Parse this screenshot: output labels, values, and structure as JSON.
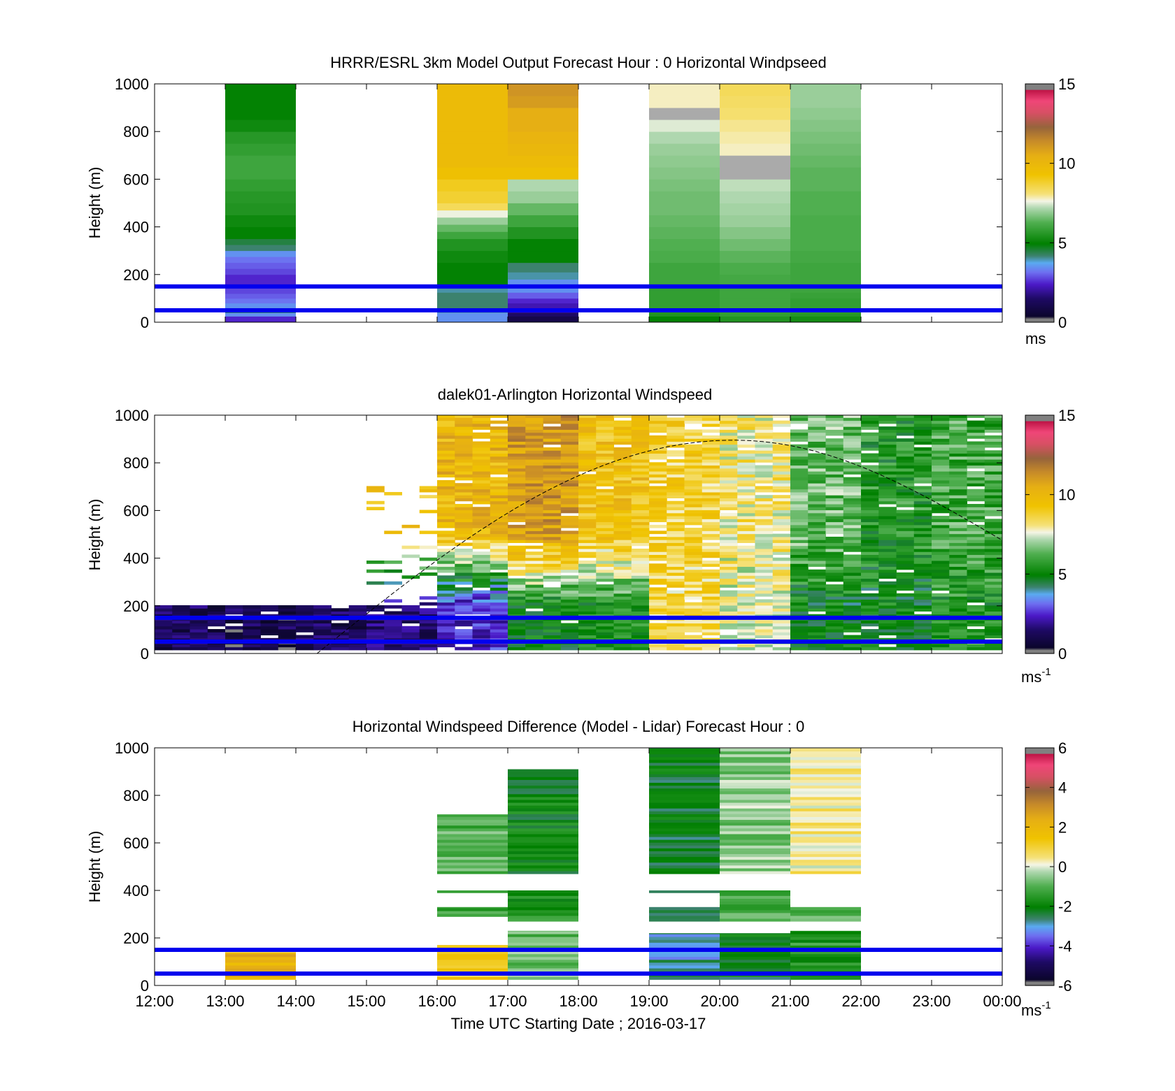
{
  "figure": {
    "xlabel": "Time UTC  Starting Date ; 2016-03-17",
    "ylabel": "Height (m)",
    "time_ticks": [
      "12:00",
      "13:00",
      "14:00",
      "15:00",
      "16:00",
      "17:00",
      "18:00",
      "19:00",
      "20:00",
      "21:00",
      "22:00",
      "23:00",
      "00:00"
    ],
    "height_ticks": [
      "0",
      "200",
      "400",
      "600",
      "800",
      "1000"
    ],
    "reference_line_color": "#0000ee"
  },
  "chart_data": [
    {
      "type": "heatmap",
      "title": "HRRR/ESRL 3km Model Output   Forecast Hour : 0 Horizontal Windpseed",
      "ylabel": "Height (m)",
      "xlim_hours": [
        12,
        24
      ],
      "ylim": [
        0,
        1000
      ],
      "colorbar": {
        "range": [
          0,
          15
        ],
        "ticks": [
          "0",
          "5",
          "10",
          "15"
        ],
        "label": "ms",
        "superscript": ""
      },
      "reference_lines_m": [
        50,
        150
      ],
      "columns": [
        {
          "start_hour": 13,
          "profile": [
            [
              25,
              2.5
            ],
            [
              40,
              3.5
            ],
            [
              60,
              4.5
            ],
            [
              80,
              3.5
            ],
            [
              100,
              3.2
            ],
            [
              120,
              3.0
            ],
            [
              150,
              2.8
            ],
            [
              175,
              2.5
            ],
            [
              200,
              2.5
            ],
            [
              225,
              2.8
            ],
            [
              250,
              3.0
            ],
            [
              275,
              3.2
            ],
            [
              300,
              3.5
            ],
            [
              325,
              4.2
            ],
            [
              350,
              4.5
            ],
            [
              400,
              5.0
            ],
            [
              450,
              5.2
            ],
            [
              500,
              5.5
            ],
            [
              550,
              5.6
            ],
            [
              600,
              5.8
            ],
            [
              650,
              6.0
            ],
            [
              700,
              6.0
            ],
            [
              750,
              5.8
            ],
            [
              800,
              5.6
            ],
            [
              850,
              5.2
            ],
            [
              900,
              5.0
            ],
            [
              1000,
              5.0
            ]
          ]
        },
        {
          "start_hour": 16,
          "profile": [
            [
              25,
              3.5
            ],
            [
              40,
              3.5
            ],
            [
              60,
              4.0
            ],
            [
              80,
              4.2
            ],
            [
              100,
              4.2
            ],
            [
              125,
              4.2
            ],
            [
              150,
              4.0
            ],
            [
              200,
              5.0
            ],
            [
              250,
              5.0
            ],
            [
              300,
              5.2
            ],
            [
              350,
              5.5
            ],
            [
              380,
              6.0
            ],
            [
              410,
              6.5
            ],
            [
              440,
              7.0
            ],
            [
              470,
              7.6
            ],
            [
              500,
              8.4
            ],
            [
              550,
              8.8
            ],
            [
              600,
              9.0
            ],
            [
              650,
              9.5
            ],
            [
              700,
              9.8
            ],
            [
              750,
              9.8
            ],
            [
              800,
              9.8
            ],
            [
              850,
              9.8
            ],
            [
              900,
              9.8
            ],
            [
              950,
              9.8
            ],
            [
              1000,
              9.8
            ]
          ]
        },
        {
          "start_hour": 17,
          "profile": [
            [
              25,
              1.0
            ],
            [
              40,
              1.5
            ],
            [
              60,
              2.0
            ],
            [
              80,
              2.2
            ],
            [
              100,
              2.5
            ],
            [
              125,
              3.0
            ],
            [
              150,
              3.5
            ],
            [
              180,
              3.5
            ],
            [
              210,
              4.0
            ],
            [
              250,
              4.2
            ],
            [
              300,
              5.0
            ],
            [
              350,
              5.0
            ],
            [
              400,
              5.5
            ],
            [
              450,
              6.0
            ],
            [
              500,
              6.5
            ],
            [
              550,
              7.0
            ],
            [
              600,
              7.2
            ],
            [
              650,
              9.5
            ],
            [
              700,
              9.8
            ],
            [
              750,
              10.0
            ],
            [
              800,
              10.2
            ],
            [
              850,
              10.5
            ],
            [
              900,
              10.5
            ],
            [
              950,
              11.0
            ],
            [
              1000,
              11.2
            ]
          ]
        },
        {
          "start_hour": 19,
          "profile": [
            [
              25,
              5.0
            ],
            [
              40,
              5.5
            ],
            [
              60,
              5.6
            ],
            [
              80,
              5.8
            ],
            [
              100,
              5.8
            ],
            [
              125,
              5.8
            ],
            [
              150,
              5.8
            ],
            [
              200,
              6.0
            ],
            [
              250,
              6.0
            ],
            [
              300,
              6.2
            ],
            [
              350,
              6.3
            ],
            [
              400,
              6.4
            ],
            [
              450,
              6.5
            ],
            [
              500,
              6.6
            ],
            [
              550,
              6.6
            ],
            [
              600,
              6.7
            ],
            [
              650,
              6.8
            ],
            [
              700,
              6.9
            ],
            [
              750,
              7.0
            ],
            [
              800,
              7.2
            ],
            [
              850,
              7.5
            ],
            [
              900,
              16.0
            ],
            [
              950,
              7.8
            ],
            [
              1000,
              7.8
            ]
          ]
        },
        {
          "start_hour": 20,
          "profile": [
            [
              25,
              5.5
            ],
            [
              40,
              5.8
            ],
            [
              60,
              5.8
            ],
            [
              80,
              6.0
            ],
            [
              100,
              6.0
            ],
            [
              125,
              6.0
            ],
            [
              150,
              6.0
            ],
            [
              200,
              6.1
            ],
            [
              250,
              6.2
            ],
            [
              300,
              6.4
            ],
            [
              350,
              6.6
            ],
            [
              400,
              6.8
            ],
            [
              450,
              7.0
            ],
            [
              500,
              7.1
            ],
            [
              550,
              7.2
            ],
            [
              600,
              7.3
            ],
            [
              650,
              16.0
            ],
            [
              700,
              16.0
            ],
            [
              750,
              7.8
            ],
            [
              800,
              7.9
            ],
            [
              850,
              8.0
            ],
            [
              900,
              8.2
            ],
            [
              950,
              8.3
            ],
            [
              1000,
              8.4
            ]
          ]
        },
        {
          "start_hour": 21,
          "profile": [
            [
              25,
              5.3
            ],
            [
              40,
              5.6
            ],
            [
              60,
              5.8
            ],
            [
              80,
              5.8
            ],
            [
              100,
              5.8
            ],
            [
              125,
              5.9
            ],
            [
              150,
              6.0
            ],
            [
              200,
              6.0
            ],
            [
              250,
              6.0
            ],
            [
              300,
              6.1
            ],
            [
              350,
              6.2
            ],
            [
              400,
              6.2
            ],
            [
              450,
              6.2
            ],
            [
              500,
              6.3
            ],
            [
              550,
              6.3
            ],
            [
              600,
              6.4
            ],
            [
              650,
              6.4
            ],
            [
              700,
              6.5
            ],
            [
              750,
              6.6
            ],
            [
              800,
              6.7
            ],
            [
              850,
              6.8
            ],
            [
              900,
              6.9
            ],
            [
              950,
              7.0
            ],
            [
              1000,
              7.0
            ]
          ]
        }
      ]
    },
    {
      "type": "heatmap",
      "title": "dalek01-Arlington  Horizontal Windspeed",
      "ylabel": "Height (m)",
      "xlim_hours": [
        12,
        24
      ],
      "ylim": [
        0,
        1000
      ],
      "colorbar": {
        "range": [
          0,
          15
        ],
        "ticks": [
          "0",
          "5",
          "10",
          "15"
        ],
        "label": "ms",
        "superscript": "-1"
      },
      "reference_lines_m": [
        50,
        150
      ],
      "boundary_layer_curve": {
        "start_hour": 14.3,
        "peak_hour": 20.2,
        "peak_height_m": 895,
        "end_hour": 24,
        "end_height_m": 475
      },
      "profile_bins_per_hour": 4,
      "hourly_summary": [
        {
          "hour": 12,
          "low_speed": 1.2,
          "mid_speed": null,
          "top_m": 200
        },
        {
          "hour": 13,
          "low_speed": 1.0,
          "mid_speed": null,
          "top_m": 200
        },
        {
          "hour": 14,
          "low_speed": 1.2,
          "mid_speed": null,
          "top_m": 200
        },
        {
          "hour": 15,
          "low_speed": 1.5,
          "mid_speed": 9.5,
          "top_m": 700
        },
        {
          "hour": 16,
          "low_speed": 2.5,
          "mid_speed": 10.0,
          "top_m": 1000
        },
        {
          "hour": 17,
          "low_speed": 5.0,
          "mid_speed": 11.0,
          "top_m": 1000
        },
        {
          "hour": 18,
          "low_speed": 5.5,
          "mid_speed": 9.5,
          "top_m": 1000
        },
        {
          "hour": 19,
          "low_speed": 8.5,
          "mid_speed": 8.8,
          "top_m": 1000
        },
        {
          "hour": 20,
          "low_speed": 7.5,
          "mid_speed": 8.0,
          "top_m": 1000
        },
        {
          "hour": 21,
          "low_speed": 5.0,
          "mid_speed": 6.5,
          "top_m": 1000
        },
        {
          "hour": 22,
          "low_speed": 5.0,
          "mid_speed": 5.5,
          "top_m": 1000
        },
        {
          "hour": 23,
          "low_speed": 5.5,
          "mid_speed": 6.0,
          "top_m": 1000
        }
      ]
    },
    {
      "type": "heatmap",
      "title": "Horizontal Windspeed Difference (Model - Lidar) Forecast Hour : 0",
      "ylabel": "Height (m)",
      "xlim_hours": [
        12,
        24
      ],
      "ylim": [
        0,
        1000
      ],
      "colorbar": {
        "range": [
          -6,
          6
        ],
        "ticks": [
          "-6",
          "-4",
          "-2",
          "0",
          "2",
          "4",
          "6"
        ],
        "label": "ms",
        "superscript": "-1"
      },
      "reference_lines_m": [
        50,
        150
      ],
      "blocks": [
        {
          "start_hour": 13,
          "from_m": 25,
          "to_m": 140,
          "value": 2.2
        },
        {
          "start_hour": 16,
          "from_m": 25,
          "to_m": 170,
          "value": 1.0
        },
        {
          "start_hour": 16,
          "from_m": 470,
          "to_m": 720,
          "value": -1.0
        },
        {
          "start_hour": 16,
          "from_m": 390,
          "to_m": 400,
          "value": -1.2
        },
        {
          "start_hour": 16,
          "from_m": 290,
          "to_m": 330,
          "value": -1.2
        },
        {
          "start_hour": 17,
          "from_m": 25,
          "to_m": 230,
          "value": -0.8
        },
        {
          "start_hour": 17,
          "from_m": 270,
          "to_m": 400,
          "value": -1.6
        },
        {
          "start_hour": 17,
          "from_m": 470,
          "to_m": 910,
          "value": -2.0
        },
        {
          "start_hour": 19,
          "from_m": 25,
          "to_m": 220,
          "value": -2.8
        },
        {
          "start_hour": 19,
          "from_m": 270,
          "to_m": 330,
          "value": -2.6
        },
        {
          "start_hour": 19,
          "from_m": 390,
          "to_m": 400,
          "value": -2.0
        },
        {
          "start_hour": 19,
          "from_m": 470,
          "to_m": 1000,
          "value": -2.2
        },
        {
          "start_hour": 20,
          "from_m": 25,
          "to_m": 220,
          "value": -2.2
        },
        {
          "start_hour": 20,
          "from_m": 270,
          "to_m": 400,
          "value": -1.0
        },
        {
          "start_hour": 20,
          "from_m": 470,
          "to_m": 1000,
          "value": -0.5
        },
        {
          "start_hour": 21,
          "from_m": 25,
          "to_m": 230,
          "value": -1.5
        },
        {
          "start_hour": 21,
          "from_m": 270,
          "to_m": 330,
          "value": -1.0
        },
        {
          "start_hour": 21,
          "from_m": 470,
          "to_m": 1000,
          "value": 0.4
        }
      ]
    }
  ]
}
